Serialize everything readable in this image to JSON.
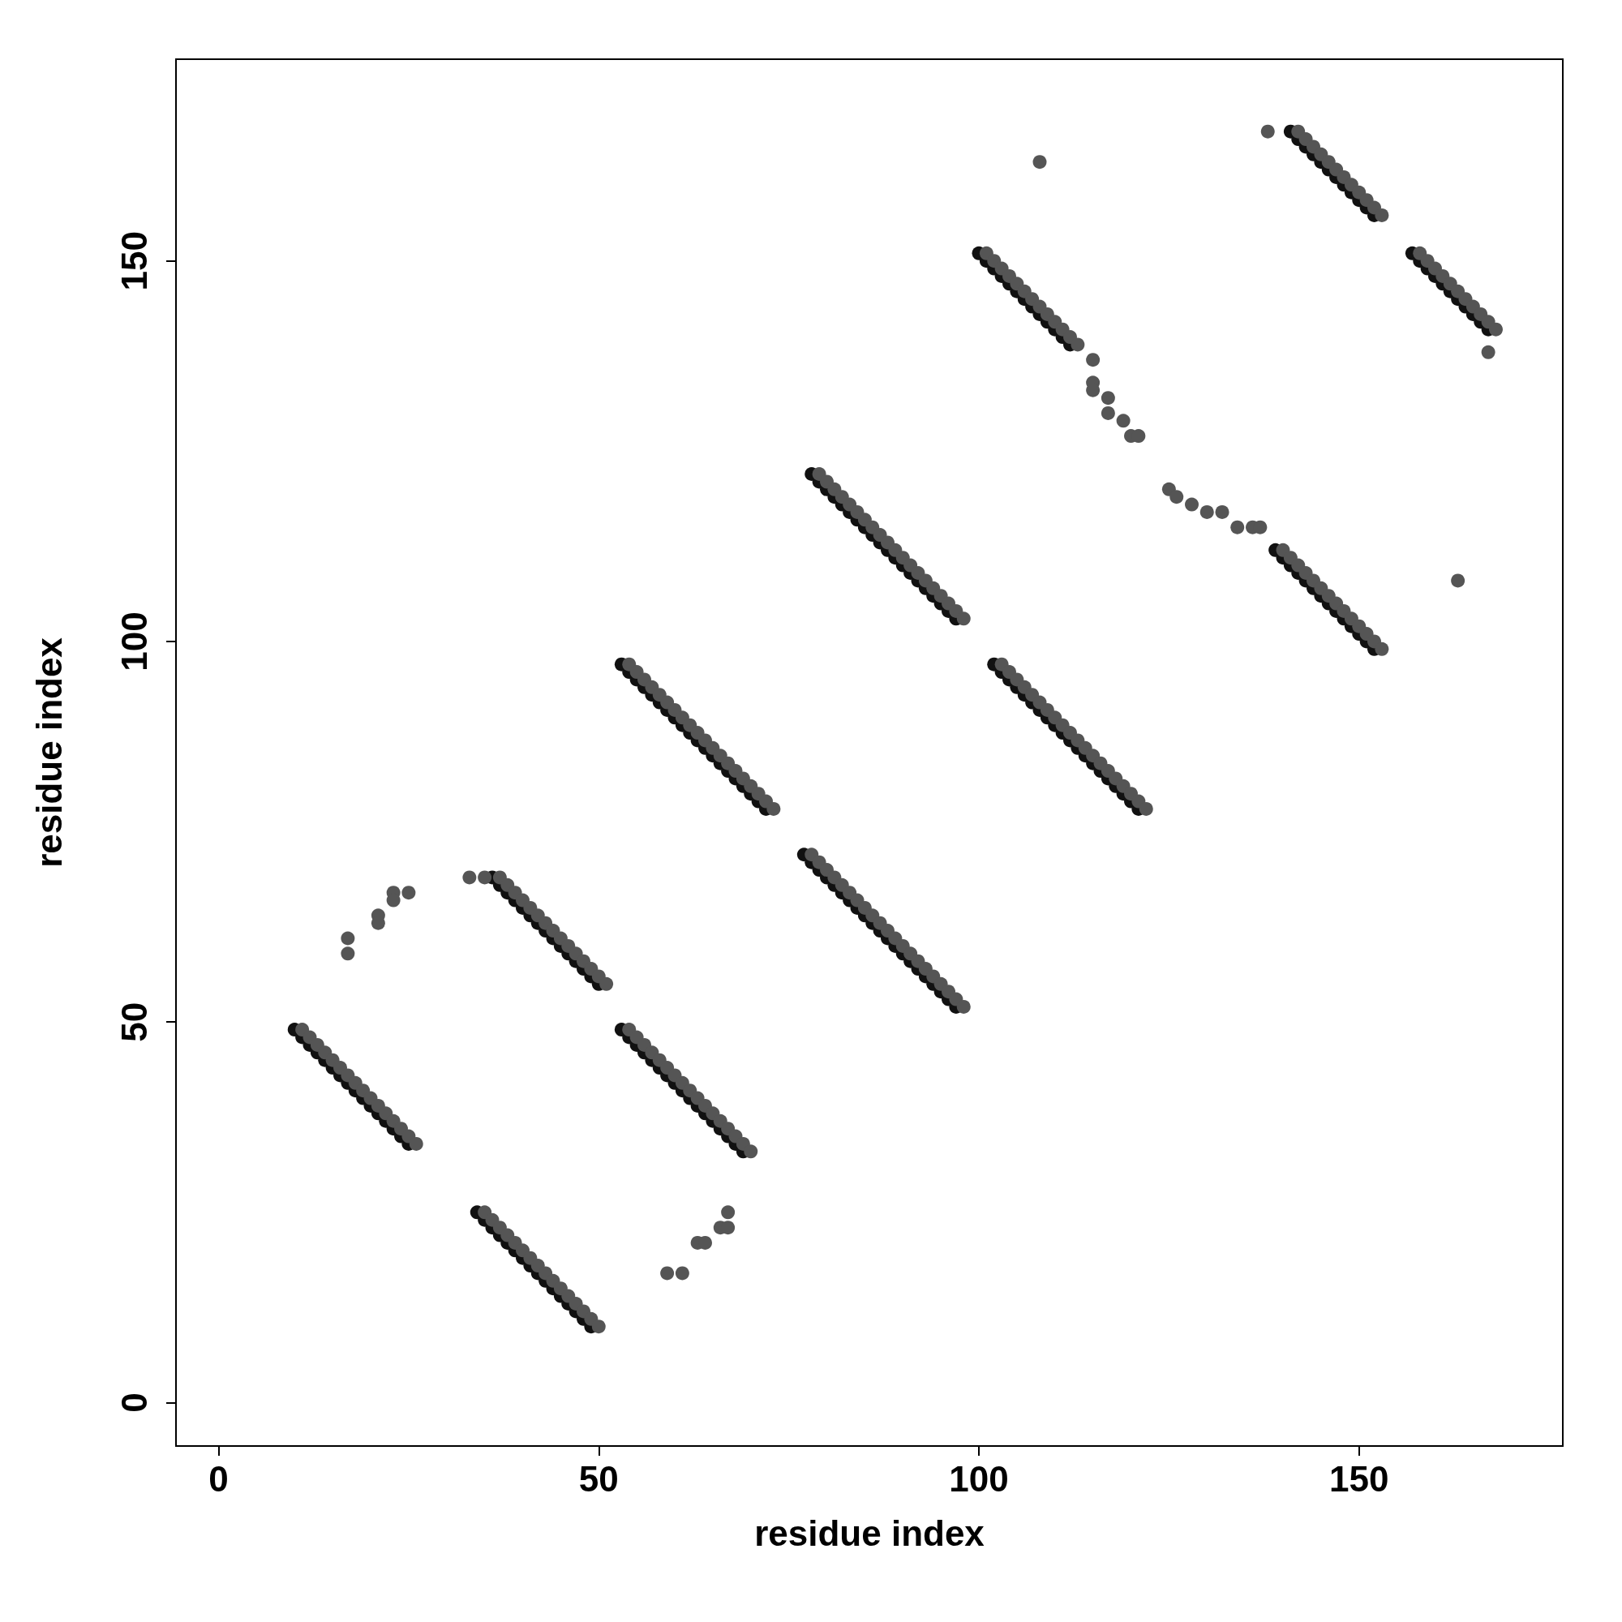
{
  "chart_data": {
    "type": "scatter",
    "xlabel": "residue index",
    "ylabel": "residue index",
    "xlim": [
      -5.6,
      176.8
    ],
    "ylim": [
      -5.7,
      176.5
    ],
    "xticks": [
      0,
      50,
      100,
      150
    ],
    "yticks": [
      0,
      50,
      100,
      150
    ],
    "grid": false,
    "marker": "circle",
    "series": [
      {
        "color": "#111111",
        "x": [
          10,
          11,
          12,
          13,
          14,
          15,
          16,
          17,
          18,
          19,
          20,
          21,
          22,
          23,
          24,
          25,
          34,
          35,
          36,
          37,
          38,
          39,
          40,
          41,
          42,
          43,
          44,
          45,
          46,
          47,
          48,
          49,
          36,
          37,
          38,
          39,
          40,
          41,
          42,
          43,
          44,
          45,
          46,
          47,
          48,
          49,
          50,
          53,
          54,
          55,
          56,
          57,
          58,
          59,
          60,
          61,
          62,
          63,
          64,
          65,
          66,
          67,
          68,
          69,
          53,
          54,
          55,
          56,
          57,
          58,
          59,
          60,
          61,
          62,
          63,
          64,
          65,
          66,
          67,
          68,
          69,
          70,
          71,
          72,
          77,
          78,
          79,
          80,
          81,
          82,
          83,
          84,
          85,
          86,
          87,
          88,
          89,
          90,
          91,
          92,
          93,
          94,
          95,
          96,
          97,
          78,
          79,
          80,
          81,
          82,
          83,
          84,
          85,
          86,
          87,
          88,
          89,
          90,
          91,
          92,
          93,
          94,
          95,
          96,
          97,
          102,
          103,
          104,
          105,
          106,
          107,
          108,
          109,
          110,
          111,
          112,
          113,
          114,
          115,
          116,
          117,
          118,
          119,
          120,
          121,
          100,
          101,
          102,
          103,
          104,
          105,
          106,
          107,
          108,
          109,
          110,
          111,
          112,
          141,
          142,
          143,
          144,
          145,
          146,
          147,
          148,
          149,
          150,
          151,
          152,
          157,
          158,
          159,
          160,
          161,
          162,
          163,
          164,
          165,
          166,
          167,
          139,
          140,
          141,
          142,
          143,
          144,
          145,
          146,
          147,
          148,
          149,
          150,
          151,
          152
        ],
        "values": [
          49,
          48,
          47,
          46,
          45,
          44,
          43,
          42,
          41,
          40,
          39,
          38,
          37,
          36,
          35,
          34,
          25,
          24,
          23,
          22,
          21,
          20,
          19,
          18,
          17,
          16,
          15,
          14,
          13,
          12,
          11,
          10,
          69,
          68,
          67,
          66,
          65,
          64,
          63,
          62,
          61,
          60,
          59,
          58,
          57,
          56,
          55,
          49,
          48,
          47,
          46,
          45,
          44,
          43,
          42,
          41,
          40,
          39,
          38,
          37,
          36,
          35,
          34,
          33,
          97,
          96,
          95,
          94,
          93,
          92,
          91,
          90,
          89,
          88,
          87,
          86,
          85,
          84,
          83,
          82,
          81,
          80,
          79,
          78,
          72,
          71,
          70,
          69,
          68,
          67,
          66,
          65,
          64,
          63,
          62,
          61,
          60,
          59,
          58,
          57,
          56,
          55,
          54,
          53,
          52,
          122,
          121,
          120,
          119,
          118,
          117,
          116,
          115,
          114,
          113,
          112,
          111,
          110,
          109,
          108,
          107,
          106,
          105,
          104,
          103,
          97,
          96,
          95,
          94,
          93,
          92,
          91,
          90,
          89,
          88,
          87,
          86,
          85,
          84,
          83,
          82,
          81,
          80,
          79,
          78,
          151,
          150,
          149,
          148,
          147,
          146,
          145,
          144,
          143,
          142,
          141,
          140,
          139,
          167,
          166,
          165,
          164,
          163,
          162,
          161,
          160,
          159,
          158,
          157,
          156,
          151,
          150,
          149,
          148,
          147,
          146,
          145,
          144,
          143,
          142,
          141,
          112,
          111,
          110,
          109,
          108,
          107,
          106,
          105,
          104,
          103,
          102,
          101,
          100,
          99
        ]
      },
      {
        "color": "#555555",
        "x": [
          11,
          12,
          13,
          14,
          15,
          16,
          17,
          18,
          19,
          20,
          21,
          22,
          23,
          24,
          25,
          26,
          35,
          36,
          37,
          38,
          39,
          40,
          41,
          42,
          43,
          44,
          45,
          46,
          47,
          48,
          49,
          50,
          37,
          38,
          39,
          40,
          41,
          42,
          43,
          44,
          45,
          46,
          47,
          48,
          49,
          50,
          51,
          54,
          55,
          56,
          57,
          58,
          59,
          60,
          61,
          62,
          63,
          64,
          65,
          66,
          67,
          68,
          69,
          70,
          54,
          55,
          56,
          57,
          58,
          59,
          60,
          61,
          62,
          63,
          64,
          65,
          66,
          67,
          68,
          69,
          70,
          71,
          72,
          73,
          78,
          79,
          80,
          81,
          82,
          83,
          84,
          85,
          86,
          87,
          88,
          89,
          90,
          91,
          92,
          93,
          94,
          95,
          96,
          97,
          98,
          79,
          80,
          81,
          82,
          83,
          84,
          85,
          86,
          87,
          88,
          89,
          90,
          91,
          92,
          93,
          94,
          95,
          96,
          97,
          98,
          103,
          104,
          105,
          106,
          107,
          108,
          109,
          110,
          111,
          112,
          113,
          114,
          115,
          116,
          117,
          118,
          119,
          120,
          121,
          122,
          101,
          102,
          103,
          104,
          105,
          106,
          107,
          108,
          109,
          110,
          111,
          112,
          113,
          142,
          143,
          144,
          145,
          146,
          147,
          148,
          149,
          150,
          151,
          152,
          153,
          158,
          159,
          160,
          161,
          162,
          163,
          164,
          165,
          166,
          167,
          168,
          140,
          141,
          142,
          143,
          144,
          145,
          146,
          147,
          148,
          149,
          150,
          151,
          152,
          153,
          17,
          17,
          21,
          21,
          23,
          23,
          25,
          59,
          61,
          63,
          64,
          66,
          67,
          67,
          115,
          115,
          115,
          117,
          117,
          119,
          120,
          121,
          108,
          138,
          125,
          126,
          128,
          130,
          132,
          134,
          136,
          137,
          163,
          167,
          33,
          35
        ],
        "values": [
          49,
          48,
          47,
          46,
          45,
          44,
          43,
          42,
          41,
          40,
          39,
          38,
          37,
          36,
          35,
          34,
          25,
          24,
          23,
          22,
          21,
          20,
          19,
          18,
          17,
          16,
          15,
          14,
          13,
          12,
          11,
          10,
          69,
          68,
          67,
          66,
          65,
          64,
          63,
          62,
          61,
          60,
          59,
          58,
          57,
          56,
          55,
          49,
          48,
          47,
          46,
          45,
          44,
          43,
          42,
          41,
          40,
          39,
          38,
          37,
          36,
          35,
          34,
          33,
          97,
          96,
          95,
          94,
          93,
          92,
          91,
          90,
          89,
          88,
          87,
          86,
          85,
          84,
          83,
          82,
          81,
          80,
          79,
          78,
          72,
          71,
          70,
          69,
          68,
          67,
          66,
          65,
          64,
          63,
          62,
          61,
          60,
          59,
          58,
          57,
          56,
          55,
          54,
          53,
          52,
          122,
          121,
          120,
          119,
          118,
          117,
          116,
          115,
          114,
          113,
          112,
          111,
          110,
          109,
          108,
          107,
          106,
          105,
          104,
          103,
          97,
          96,
          95,
          94,
          93,
          92,
          91,
          90,
          89,
          88,
          87,
          86,
          85,
          84,
          83,
          82,
          81,
          80,
          79,
          78,
          151,
          150,
          149,
          148,
          147,
          146,
          145,
          144,
          143,
          142,
          141,
          140,
          139,
          167,
          166,
          165,
          164,
          163,
          162,
          161,
          160,
          159,
          158,
          157,
          156,
          151,
          150,
          149,
          148,
          147,
          146,
          145,
          144,
          143,
          142,
          141,
          112,
          111,
          110,
          109,
          108,
          107,
          106,
          105,
          104,
          103,
          102,
          101,
          100,
          99,
          61,
          59,
          64,
          63,
          67,
          66,
          67,
          17,
          17,
          21,
          21,
          23,
          23,
          25,
          137,
          134,
          133,
          132,
          130,
          129,
          127,
          127,
          163,
          167,
          120,
          119,
          118,
          117,
          117,
          115,
          115,
          115,
          108,
          138,
          69,
          69
        ]
      }
    ]
  }
}
